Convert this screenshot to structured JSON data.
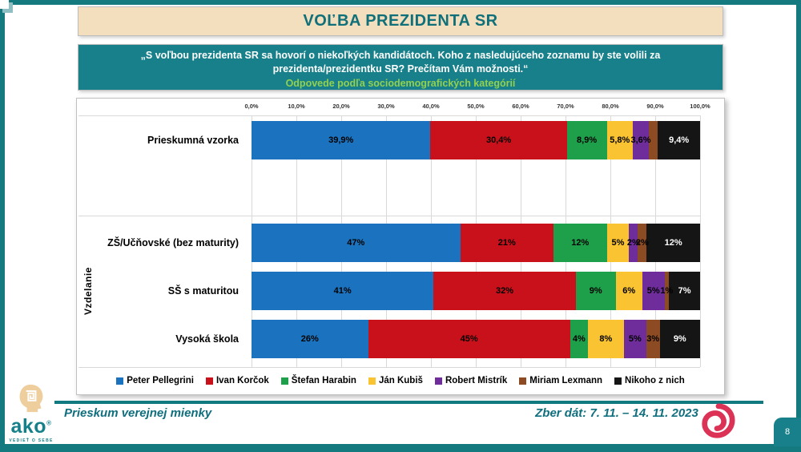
{
  "title": "VOĽBA PREZIDENTA SR",
  "question": {
    "line1": "„S voľbou prezidenta SR sa hovorí o niekoľkých kandidátoch. Koho z nasledujúceho zoznamu by ste volili za",
    "line2": "prezidenta/prezidentku SR? Prečítam Vám možnosti.“",
    "subtitle": "Odpovede podľa sociodemografických kategórií"
  },
  "chart_data": {
    "type": "bar",
    "variant": "horizontal-stacked",
    "xlim": [
      0,
      100
    ],
    "grid": true,
    "legend_position": "bottom",
    "x_axis_ticks": [
      "0,0%",
      "10,0%",
      "20,0%",
      "30,0%",
      "40,0%",
      "50,0%",
      "60,0%",
      "70,0%",
      "80,0%",
      "90,0%",
      "100,0%"
    ],
    "group_label": "Vzdelanie",
    "group_rows": [
      1,
      2,
      3
    ],
    "categories": [
      "Prieskumná vzorka",
      "ZŠ/Učňovské (bez maturity)",
      "SŠ s maturitou",
      "Vysoká škola"
    ],
    "series": [
      {
        "name": "Peter Pellegrini",
        "color": "#1B73BF",
        "values": [
          39.9,
          47,
          41,
          26
        ]
      },
      {
        "name": "Ivan Korčok",
        "color": "#C9111B",
        "values": [
          30.4,
          21,
          32,
          45
        ]
      },
      {
        "name": "Štefan Harabin",
        "color": "#1EA04B",
        "values": [
          8.9,
          12,
          9,
          4
        ]
      },
      {
        "name": "Ján Kubiš",
        "color": "#FAC332",
        "values": [
          5.8,
          5,
          6,
          8
        ]
      },
      {
        "name": "Robert Mistrík",
        "color": "#6E2D9B",
        "values": [
          3.6,
          2,
          5,
          5
        ]
      },
      {
        "name": "Miriam Lexmann",
        "color": "#8C4B23",
        "values": [
          2.0,
          2,
          1,
          3
        ]
      },
      {
        "name": "Nikoho z nich",
        "color": "#151515",
        "values": [
          9.4,
          12,
          7,
          9
        ]
      }
    ],
    "segment_labels": [
      [
        "39,9%",
        "30,4%",
        "8,9%",
        "5,8%",
        "3,6%",
        "",
        "9,4%"
      ],
      [
        "47%",
        "21%",
        "12%",
        "5%",
        "2%",
        "2%",
        "12%"
      ],
      [
        "41%",
        "32%",
        "9%",
        "6%",
        "5%",
        "1%",
        "7%"
      ],
      [
        "26%",
        "45%",
        "4%",
        "8%",
        "5%",
        "3%",
        "9%"
      ]
    ]
  },
  "footer": {
    "brand_name": "ako",
    "brand_slogan": "VEDIEŤ O SEBE",
    "left_text": "Prieskum verejnej mienky",
    "right_text": "Zber dát: 7. 11. – 14. 11. 2023",
    "page_number": "8"
  },
  "colors": {
    "teal_frame": "#157A80",
    "teal_box": "#17808A",
    "title_bg": "#F3DEBD",
    "title_text": "#10707A",
    "subtitle_green": "#92D050",
    "spiral_red": "#DC3255"
  }
}
